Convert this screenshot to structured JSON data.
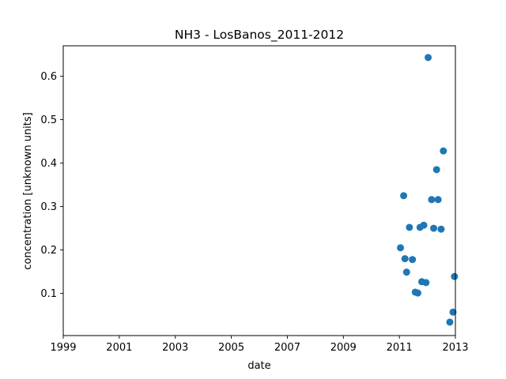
{
  "chart_data": {
    "type": "scatter",
    "title": "NH3 - LosBanos_2011-2012",
    "xlabel": "date",
    "ylabel": "concentration [unknown units]",
    "xlim": [
      "1999-01-01",
      "2013-01-01"
    ],
    "ylim": [
      0.003,
      0.67
    ],
    "grid": false,
    "x_ticks": [
      "1999",
      "2001",
      "2003",
      "2005",
      "2007",
      "2009",
      "2011",
      "2013"
    ],
    "y_ticks": [
      "0.1",
      "0.2",
      "0.3",
      "0.4",
      "0.5",
      "0.6"
    ],
    "marker_color": "#1f77b4",
    "points": [
      {
        "x": "2011-01-15",
        "y": 0.205
      },
      {
        "x": "2011-02-26",
        "y": 0.325
      },
      {
        "x": "2011-03-15",
        "y": 0.18
      },
      {
        "x": "2011-04-05",
        "y": 0.149
      },
      {
        "x": "2011-05-12",
        "y": 0.252
      },
      {
        "x": "2011-06-20",
        "y": 0.178
      },
      {
        "x": "2011-07-27",
        "y": 0.103
      },
      {
        "x": "2011-08-29",
        "y": 0.101
      },
      {
        "x": "2011-09-27",
        "y": 0.252
      },
      {
        "x": "2011-10-20",
        "y": 0.127
      },
      {
        "x": "2011-11-15",
        "y": 0.257
      },
      {
        "x": "2011-12-14",
        "y": 0.125
      },
      {
        "x": "2012-01-11",
        "y": 0.643
      },
      {
        "x": "2012-02-25",
        "y": 0.316
      },
      {
        "x": "2012-03-23",
        "y": 0.25
      },
      {
        "x": "2012-04-30",
        "y": 0.385
      },
      {
        "x": "2012-05-20",
        "y": 0.316
      },
      {
        "x": "2012-06-28",
        "y": 0.248
      },
      {
        "x": "2012-07-28",
        "y": 0.428
      },
      {
        "x": "2012-10-20",
        "y": 0.034
      },
      {
        "x": "2012-12-01",
        "y": 0.057
      },
      {
        "x": "2012-12-20",
        "y": 0.139
      }
    ]
  }
}
